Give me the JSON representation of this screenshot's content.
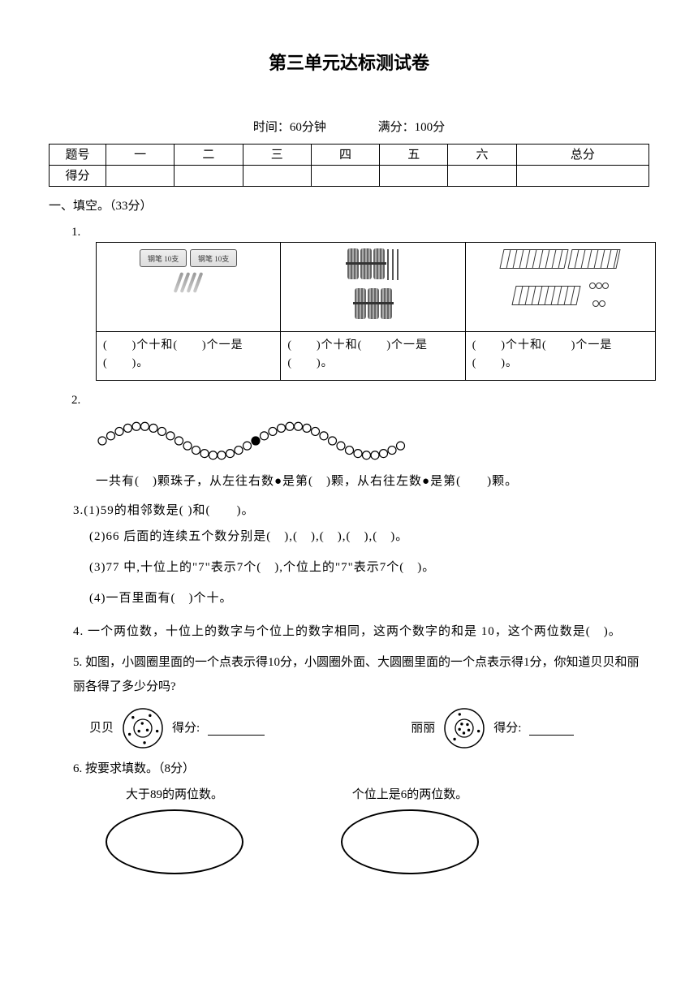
{
  "title": "第三单元达标测试卷",
  "meta": {
    "time": "时间：60分钟",
    "full": "满分：100分"
  },
  "scoreTable": {
    "row1": {
      "c0": "题号",
      "c1": "一",
      "c2": "二",
      "c3": "三",
      "c4": "四",
      "c5": "五",
      "c6": "六",
      "c7": "总分"
    },
    "row2": {
      "c0": "得分",
      "c1": "",
      "c2": "",
      "c3": "",
      "c4": "",
      "c5": "",
      "c6": "",
      "c7": ""
    }
  },
  "section1": "一、填空。（33分）",
  "q1": {
    "num": "1.",
    "cellA": "(　　)个十和(　　)个一是(　　)。",
    "cellB": "(　　)个十和(　　)个一是(　　)。",
    "cellC": "(　　)个十和(　　)个一是(　　)。"
  },
  "q2": {
    "num": "2.",
    "text": "一共有(　)颗珠子，从左往右数●是第(　)颗，从右往左数●是第(　　)颗。",
    "beads_total": 36,
    "black_index": 19,
    "wave_color": "#000000",
    "bead_fill": "#ffffff",
    "bead_stroke": "#000000"
  },
  "q3": {
    "lead": "3.(1)59的相邻数是(  )和(　　)。",
    "s2": "(2)66 后面的连续五个数分别是(　),(　),(　),(　),(　)。",
    "s3": "(3)77 中,十位上的\"7\"表示7个(　),个位上的\"7\"表示7个(　)。",
    "s4": "(4)一百里面有(　)个十。"
  },
  "q4": "4. 一个两位数，十位上的数字与个位上的数字相同，这两个数字的和是 10，这个两位数是(　)。",
  "q5": {
    "lead": "5. 如图，小圆圈里面的一个点表示得10分，小圆圈外面、大圆圈里面的一个点表示得1分，你知道贝贝和丽丽各得了多少分吗?",
    "left_name": "贝贝",
    "right_name": "丽丽",
    "score_label": "得分:",
    "beibei": {
      "inner_dots": 3,
      "outer_dots": 5
    },
    "lili": {
      "inner_dots": 5,
      "outer_dots": 3
    },
    "circle_stroke": "#000000"
  },
  "q6": {
    "lead": "6. 按要求填数。（8分）",
    "left": "大于89的两位数。",
    "right": "个位上是6的两位数。"
  }
}
